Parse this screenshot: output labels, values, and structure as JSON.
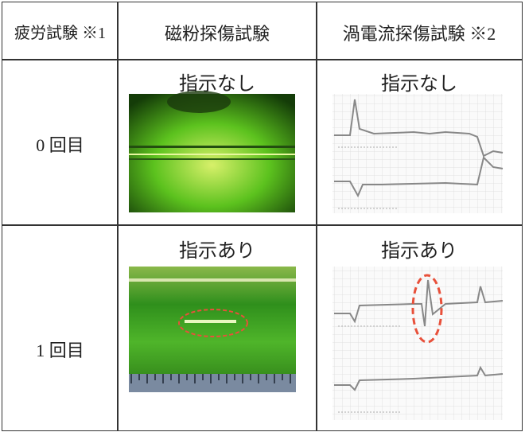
{
  "table": {
    "header": [
      "疲労試験 ※1",
      "磁粉探傷試験",
      "渦電流探傷試験 ※2"
    ],
    "rows": [
      [
        "0 回目",
        "指示なし",
        "指示なし"
      ],
      [
        "1 回目",
        "指示あり",
        "指示あり"
      ]
    ]
  }
}
